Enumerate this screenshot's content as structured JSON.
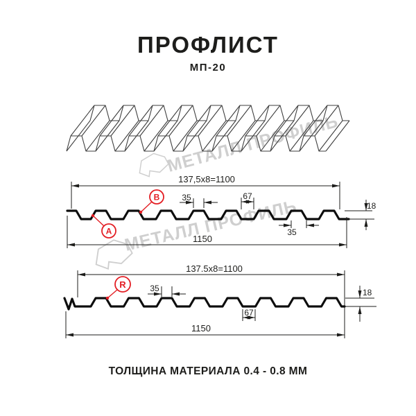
{
  "header": {
    "title": "ПРОФЛИСТ",
    "subtitle": "МП-20"
  },
  "watermark": {
    "brand": "МЕТАЛЛ ПРОФИЛЬ"
  },
  "section_top": {
    "pitch": "137,5x8=1100",
    "rib_top_width": "35",
    "valley_width": "67",
    "height": "18",
    "rib_bottom_width": "35",
    "overall_width": "1150",
    "label_a": "A",
    "label_b": "B"
  },
  "section_bottom": {
    "pitch": "137.5x8=1100",
    "rib_top_width": "35",
    "valley_width": "67",
    "height": "18",
    "overall_width": "1150",
    "label_r": "R"
  },
  "footer": {
    "note": "ТОЛЩИНА МАТЕРИАЛА 0.4 - 0.8 ММ"
  },
  "colors": {
    "red": "#e31e24",
    "ink": "#1d1d1b",
    "sketch": "#3e3e3e",
    "watermark": "#c7c7c7"
  }
}
